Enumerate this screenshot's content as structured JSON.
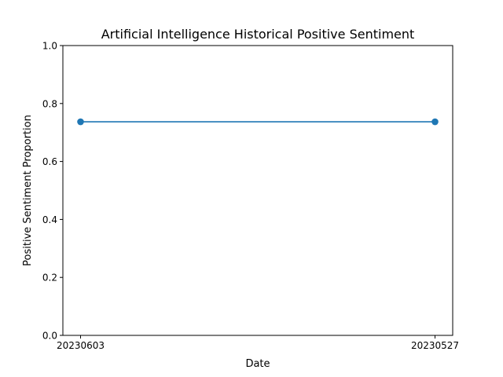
{
  "chart_data": {
    "type": "line",
    "title": "Artificial Intelligence Historical Positive Sentiment",
    "xlabel": "Date",
    "ylabel": "Positive Sentiment Proportion",
    "categories": [
      "20230603",
      "20230527"
    ],
    "series": [
      {
        "values": [
          0.737,
          0.737
        ],
        "color": "#1f77b4",
        "marker": "circle"
      }
    ],
    "ylim": [
      0,
      1
    ],
    "yticks": [
      0.0,
      0.2,
      0.4,
      0.6,
      0.8,
      1.0
    ],
    "ytick_labels": [
      "0.0",
      "0.2",
      "0.4",
      "0.6",
      "0.8",
      "1.0"
    ],
    "grid": false,
    "legend": "none"
  }
}
